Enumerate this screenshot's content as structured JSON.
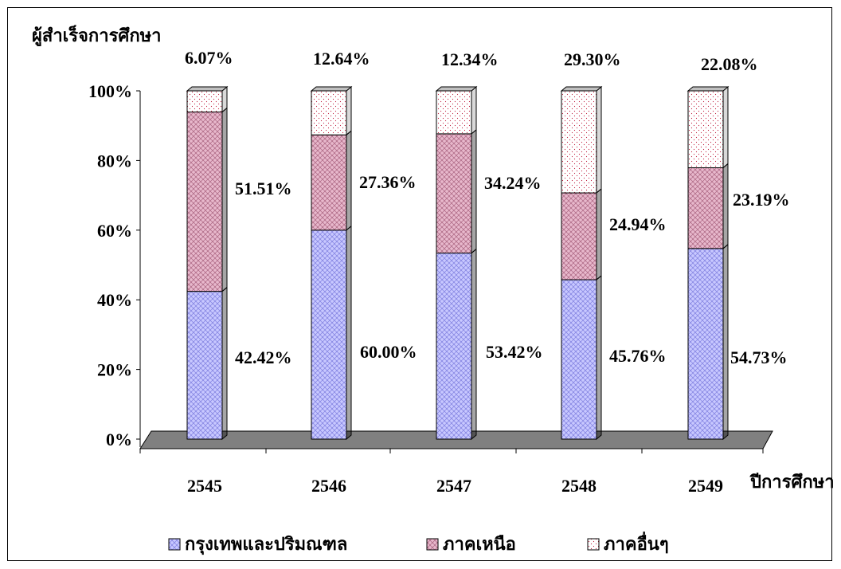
{
  "chart_data": {
    "type": "stacked-bar-100",
    "ylabel": "ผู้สำเร็จการศึกษา",
    "xlabel": "ปีการศึกษา",
    "categories": [
      "2545",
      "2546",
      "2547",
      "2548",
      "2549"
    ],
    "y_ticks": [
      "0%",
      "20%",
      "40%",
      "60%",
      "80%",
      "100%"
    ],
    "ylim": [
      0,
      100
    ],
    "legend_position": "bottom",
    "series": [
      {
        "name": "กรุงเทพและปริมณฑล",
        "values": [
          42.42,
          60.0,
          53.42,
          45.76,
          54.73
        ],
        "labels": [
          "42.42%",
          "60.00%",
          "53.42%",
          "45.76%",
          "54.73%"
        ],
        "color": "#c8c8ff",
        "pattern_color": "#5a5ad0"
      },
      {
        "name": "ภาคเหนือ",
        "values": [
          51.51,
          27.36,
          34.24,
          24.94,
          23.19
        ],
        "labels": [
          "51.51%",
          "27.36%",
          "34.24%",
          "24.94%",
          "23.19%"
        ],
        "color": "#e8b8cc",
        "pattern_color": "#8a3a5a"
      },
      {
        "name": "ภาคอื่นๆ",
        "values": [
          6.07,
          12.64,
          12.34,
          29.3,
          22.08
        ],
        "labels": [
          "6.07%",
          "12.64%",
          "12.34%",
          "29.30%",
          "22.08%"
        ],
        "color": "#ffffff",
        "pattern_color": "#c02040"
      }
    ]
  }
}
